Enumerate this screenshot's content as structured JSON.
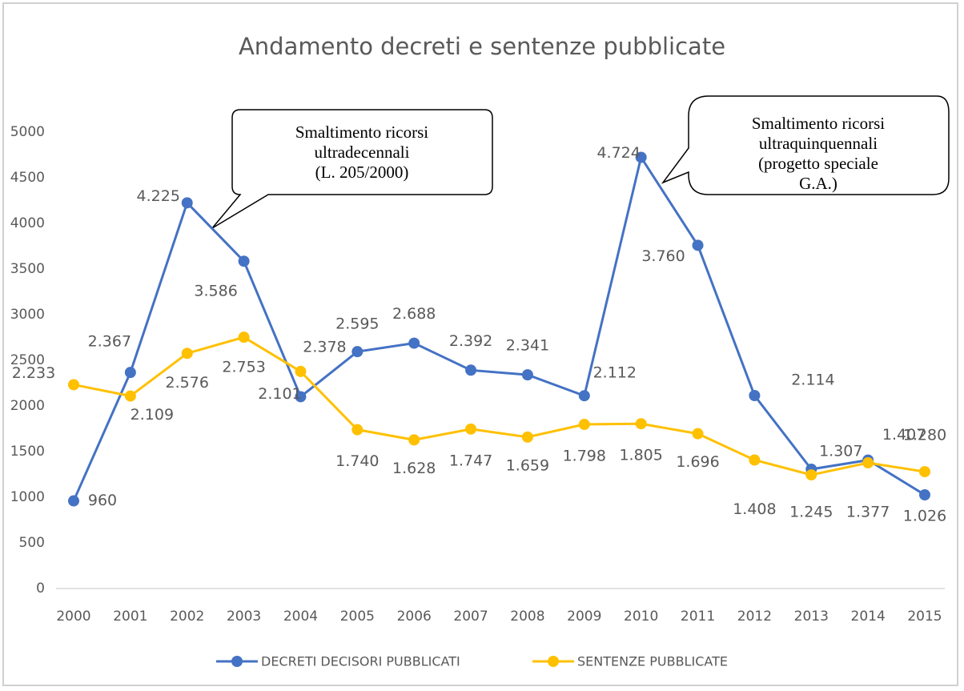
{
  "chart_data": {
    "type": "line",
    "title": "Andamento decreti e sentenze pubblicate",
    "categories": [
      "2000",
      "2001",
      "2002",
      "2003",
      "2004",
      "2005",
      "2006",
      "2007",
      "2008",
      "2009",
      "2010",
      "2011",
      "2012",
      "2013",
      "2014",
      "2015"
    ],
    "series": [
      {
        "name": "DECRETI DECISORI PUBBLICATI",
        "color": "#4472c4",
        "values": [
          960,
          2367,
          4225,
          3586,
          2101,
          2595,
          2688,
          2392,
          2341,
          2112,
          4724,
          3760,
          2114,
          1307,
          1407,
          1026
        ],
        "value_labels": [
          "960",
          "2.367",
          "4.225",
          "3.586",
          "2.101",
          "2.595",
          "2.688",
          "2.392",
          "2.341",
          "2.112",
          "4.724",
          "3.760",
          "2.114",
          "1.307",
          "1.407",
          "1.026"
        ]
      },
      {
        "name": "SENTENZE PUBBLICATE",
        "color": "#ffc000",
        "values": [
          2233,
          2109,
          2576,
          2753,
          2378,
          1740,
          1628,
          1747,
          1659,
          1798,
          1805,
          1696,
          1408,
          1245,
          1377,
          1280
        ],
        "value_labels": [
          "2.233",
          "2.109",
          "2.576",
          "2.753",
          "2.378",
          "1.740",
          "1.628",
          "1.747",
          "1.659",
          "1.798",
          "1.805",
          "1.696",
          "1.408",
          "1.245",
          "1.377",
          "1.280"
        ]
      }
    ],
    "ylim": [
      0,
      5000
    ],
    "yticks": [
      0,
      500,
      1000,
      1500,
      2000,
      2500,
      3000,
      3500,
      4000,
      4500,
      5000
    ],
    "grid": false,
    "legend": "bottom",
    "annotations": [
      {
        "lines": [
          "Smaltimento ricorsi",
          "ultradecennali",
          "(L. 205/2000)"
        ]
      },
      {
        "lines": [
          "Smaltimento ricorsi",
          "ultraquinquennali",
          "(progetto speciale",
          "G.A.)"
        ]
      }
    ]
  }
}
